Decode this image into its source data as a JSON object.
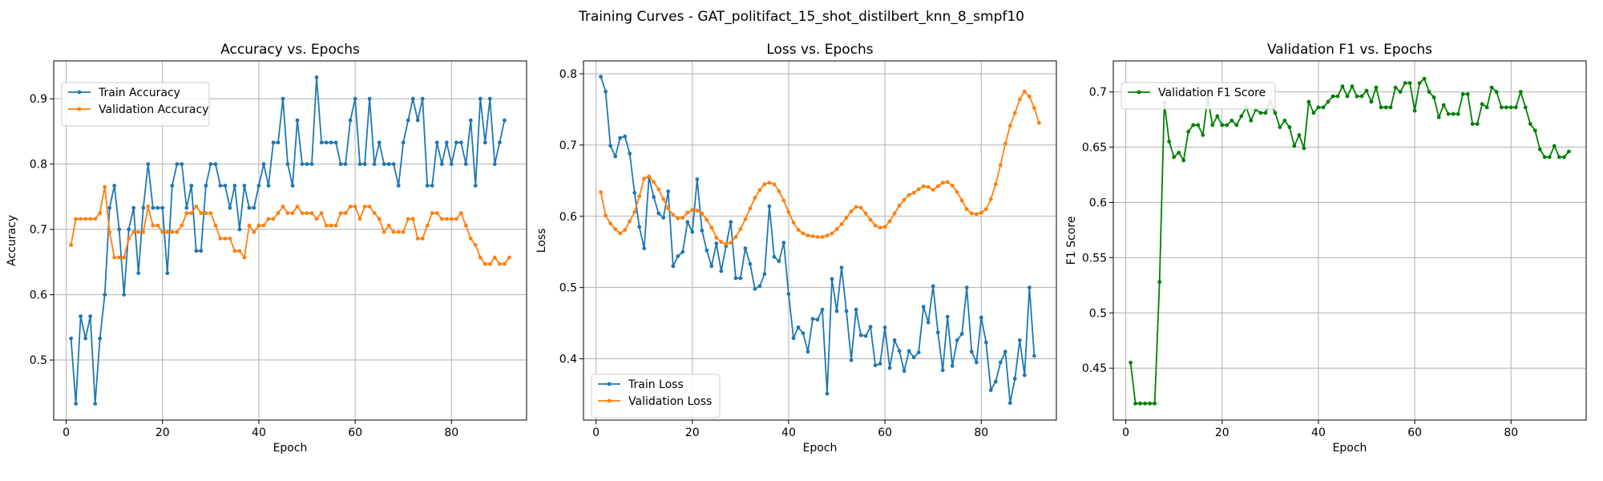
{
  "figure": {
    "suptitle": "Training Curves - GAT_politifact_15_shot_distilbert_knn_8_smpf10"
  },
  "colors": {
    "train": "#1f77b4",
    "validation": "#ff7f0e",
    "f1": "#008000",
    "grid": "#b0b0b0"
  },
  "chart_data": [
    {
      "type": "line",
      "title": "Accuracy vs. Epochs",
      "xlabel": "Epoch",
      "ylabel": "Accuracy",
      "xlim": [
        -2.6,
        95.6
      ],
      "ylim": [
        0.408,
        0.958
      ],
      "xticks": [
        0,
        20,
        40,
        60,
        80
      ],
      "yticks": [
        0.5,
        0.6,
        0.7,
        0.8,
        0.9
      ],
      "grid": true,
      "legend_position": "upper left",
      "series": [
        {
          "name": "Train Accuracy",
          "color": "#1f77b4",
          "values": [
            0.533,
            0.433,
            0.567,
            0.533,
            0.567,
            0.433,
            0.533,
            0.6,
            0.733,
            0.767,
            0.7,
            0.6,
            0.7,
            0.733,
            0.633,
            0.733,
            0.8,
            0.733,
            0.733,
            0.733,
            0.633,
            0.767,
            0.8,
            0.8,
            0.733,
            0.767,
            0.667,
            0.667,
            0.767,
            0.8,
            0.8,
            0.767,
            0.767,
            0.733,
            0.767,
            0.7,
            0.767,
            0.733,
            0.733,
            0.767,
            0.8,
            0.767,
            0.833,
            0.833,
            0.9,
            0.8,
            0.767,
            0.867,
            0.8,
            0.8,
            0.8,
            0.933,
            0.833,
            0.833,
            0.833,
            0.833,
            0.8,
            0.8,
            0.867,
            0.9,
            0.8,
            0.8,
            0.9,
            0.8,
            0.833,
            0.8,
            0.8,
            0.8,
            0.767,
            0.833,
            0.867,
            0.9,
            0.867,
            0.9,
            0.767,
            0.767,
            0.833,
            0.8,
            0.833,
            0.8,
            0.833,
            0.833,
            0.8,
            0.867,
            0.767,
            0.9,
            0.833,
            0.9,
            0.8,
            0.833,
            0.867
          ]
        },
        {
          "name": "Validation Accuracy",
          "color": "#ff7f0e",
          "values": [
            0.676,
            0.716,
            0.716,
            0.716,
            0.716,
            0.716,
            0.725,
            0.765,
            0.696,
            0.657,
            0.657,
            0.657,
            0.686,
            0.696,
            0.696,
            0.696,
            0.735,
            0.706,
            0.706,
            0.696,
            0.696,
            0.696,
            0.696,
            0.706,
            0.725,
            0.725,
            0.735,
            0.725,
            0.725,
            0.725,
            0.706,
            0.686,
            0.686,
            0.686,
            0.667,
            0.667,
            0.657,
            0.706,
            0.696,
            0.706,
            0.706,
            0.716,
            0.716,
            0.725,
            0.735,
            0.725,
            0.725,
            0.735,
            0.725,
            0.725,
            0.725,
            0.716,
            0.725,
            0.706,
            0.706,
            0.706,
            0.725,
            0.725,
            0.735,
            0.735,
            0.716,
            0.735,
            0.735,
            0.725,
            0.716,
            0.696,
            0.706,
            0.696,
            0.696,
            0.696,
            0.716,
            0.716,
            0.686,
            0.686,
            0.706,
            0.725,
            0.725,
            0.716,
            0.716,
            0.716,
            0.716,
            0.725,
            0.706,
            0.686,
            0.676,
            0.657,
            0.647,
            0.647,
            0.657,
            0.647,
            0.647,
            0.657
          ]
        }
      ]
    },
    {
      "type": "line",
      "title": "Loss vs. Epochs",
      "xlabel": "Epoch",
      "ylabel": "Loss",
      "xlim": [
        -2.6,
        95.6
      ],
      "ylim": [
        0.314,
        0.818
      ],
      "xticks": [
        0,
        20,
        40,
        60,
        80
      ],
      "yticks": [
        0.4,
        0.5,
        0.6,
        0.7,
        0.8
      ],
      "grid": true,
      "legend_position": "lower left",
      "series": [
        {
          "name": "Train Loss",
          "color": "#1f77b4",
          "values": [
            0.796,
            0.775,
            0.699,
            0.684,
            0.71,
            0.712,
            0.688,
            0.633,
            0.585,
            0.555,
            0.655,
            0.627,
            0.604,
            0.598,
            0.635,
            0.53,
            0.544,
            0.55,
            0.592,
            0.578,
            0.652,
            0.58,
            0.552,
            0.53,
            0.562,
            0.523,
            0.558,
            0.592,
            0.513,
            0.513,
            0.555,
            0.533,
            0.498,
            0.502,
            0.519,
            0.614,
            0.543,
            0.537,
            0.563,
            0.491,
            0.429,
            0.444,
            0.436,
            0.41,
            0.456,
            0.455,
            0.469,
            0.351,
            0.512,
            0.467,
            0.528,
            0.467,
            0.398,
            0.469,
            0.433,
            0.432,
            0.445,
            0.391,
            0.393,
            0.444,
            0.387,
            0.426,
            0.411,
            0.383,
            0.411,
            0.402,
            0.409,
            0.473,
            0.451,
            0.502,
            0.437,
            0.384,
            0.459,
            0.39,
            0.426,
            0.435,
            0.5,
            0.41,
            0.395,
            0.458,
            0.423,
            0.356,
            0.368,
            0.395,
            0.41,
            0.338,
            0.372,
            0.426,
            0.377,
            0.5,
            0.404
          ]
        },
        {
          "name": "Validation Loss",
          "color": "#ff7f0e",
          "values": [
            0.634,
            0.601,
            0.59,
            0.582,
            0.576,
            0.581,
            0.593,
            0.606,
            0.628,
            0.653,
            0.656,
            0.648,
            0.638,
            0.624,
            0.611,
            0.602,
            0.597,
            0.598,
            0.605,
            0.609,
            0.608,
            0.604,
            0.595,
            0.584,
            0.57,
            0.564,
            0.561,
            0.563,
            0.571,
            0.582,
            0.596,
            0.611,
            0.626,
            0.637,
            0.645,
            0.647,
            0.645,
            0.635,
            0.622,
            0.606,
            0.591,
            0.581,
            0.576,
            0.573,
            0.572,
            0.571,
            0.571,
            0.573,
            0.576,
            0.582,
            0.589,
            0.598,
            0.607,
            0.613,
            0.612,
            0.604,
            0.595,
            0.587,
            0.584,
            0.585,
            0.593,
            0.604,
            0.615,
            0.623,
            0.63,
            0.633,
            0.638,
            0.642,
            0.641,
            0.637,
            0.642,
            0.647,
            0.648,
            0.643,
            0.634,
            0.622,
            0.61,
            0.604,
            0.603,
            0.605,
            0.61,
            0.624,
            0.645,
            0.672,
            0.702,
            0.727,
            0.745,
            0.764,
            0.775,
            0.768,
            0.752,
            0.731
          ]
        }
      ]
    },
    {
      "type": "line",
      "title": "Validation F1 vs. Epochs",
      "xlabel": "Epoch",
      "ylabel": "F1 Score",
      "xlim": [
        -2.6,
        95.6
      ],
      "ylim": [
        0.403,
        0.728
      ],
      "xticks": [
        0,
        20,
        40,
        60,
        80
      ],
      "yticks": [
        0.45,
        0.5,
        0.55,
        0.6,
        0.65,
        0.7
      ],
      "grid": true,
      "legend_position": "upper left",
      "series": [
        {
          "name": "Validation F1 Score",
          "color": "#008000",
          "values": [
            0.455,
            0.418,
            0.418,
            0.418,
            0.418,
            0.418,
            0.528,
            0.69,
            0.655,
            0.641,
            0.645,
            0.638,
            0.664,
            0.67,
            0.67,
            0.661,
            0.695,
            0.67,
            0.678,
            0.67,
            0.67,
            0.674,
            0.67,
            0.678,
            0.686,
            0.674,
            0.684,
            0.681,
            0.681,
            0.691,
            0.681,
            0.668,
            0.674,
            0.668,
            0.651,
            0.661,
            0.649,
            0.691,
            0.681,
            0.686,
            0.686,
            0.691,
            0.696,
            0.696,
            0.705,
            0.696,
            0.705,
            0.696,
            0.696,
            0.701,
            0.691,
            0.704,
            0.686,
            0.686,
            0.686,
            0.704,
            0.7,
            0.708,
            0.708,
            0.683,
            0.708,
            0.712,
            0.7,
            0.695,
            0.677,
            0.688,
            0.68,
            0.68,
            0.68,
            0.698,
            0.698,
            0.671,
            0.671,
            0.689,
            0.686,
            0.704,
            0.7,
            0.686,
            0.686,
            0.686,
            0.686,
            0.7,
            0.686,
            0.671,
            0.665,
            0.648,
            0.641,
            0.641,
            0.651,
            0.641,
            0.641,
            0.646
          ]
        }
      ]
    }
  ]
}
